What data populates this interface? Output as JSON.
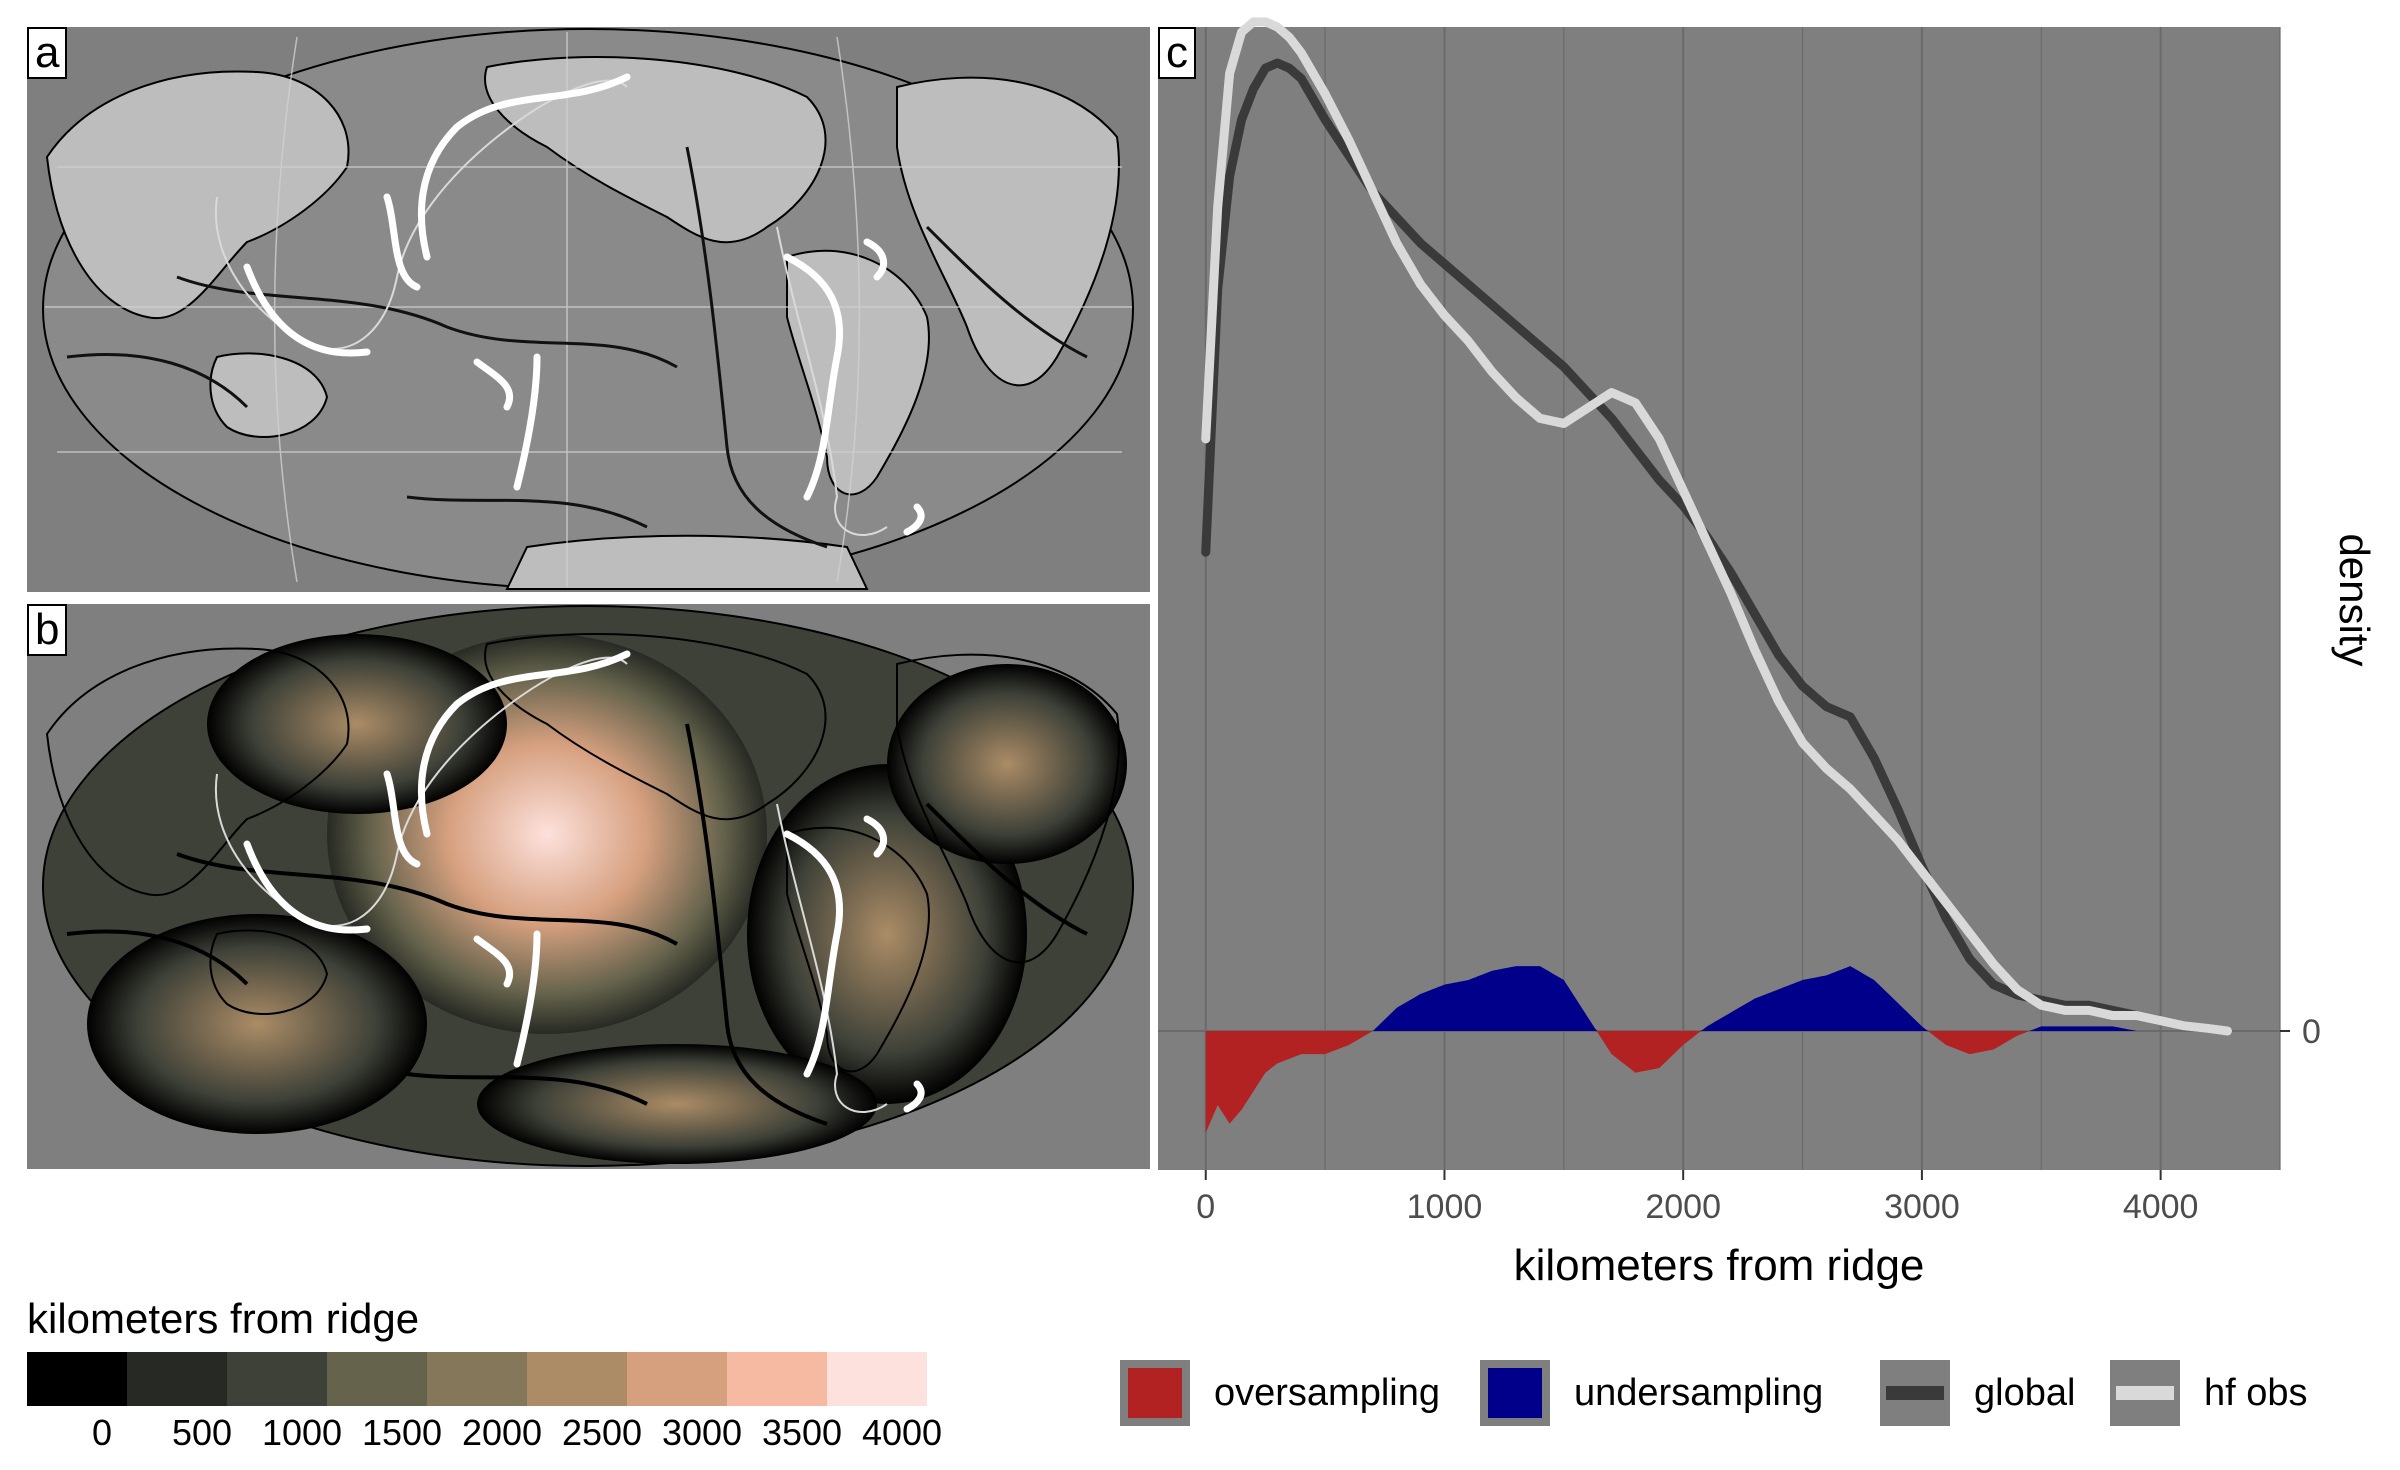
{
  "panels": {
    "a": {
      "tag": "a"
    },
    "b": {
      "tag": "b"
    },
    "c": {
      "tag": "c"
    }
  },
  "colors": {
    "panel_bg": "#7f7f7f",
    "oversampling": "#b22222",
    "undersampling": "#00008b",
    "global": "#3a3a3a",
    "hf_obs": "#d9d9d9"
  },
  "colorbar": {
    "title": "kilometers from ridge",
    "ticks": [
      "0",
      "500",
      "1000",
      "1500",
      "2000",
      "2500",
      "3000",
      "3500",
      "4000"
    ],
    "colors": [
      "#000000",
      "#272a24",
      "#3e4138",
      "#65634c",
      "#85775a",
      "#ab8c66",
      "#d6a07f",
      "#f6b9a2",
      "#fde1dc"
    ]
  },
  "legend": {
    "items": [
      {
        "label": "oversampling",
        "kind": "fill",
        "color": "#b22222"
      },
      {
        "label": "undersampling",
        "kind": "fill",
        "color": "#00008b"
      },
      {
        "label": "global",
        "kind": "line",
        "color": "#3a3a3a"
      },
      {
        "label": "hf obs",
        "kind": "line",
        "color": "#d9d9d9"
      }
    ]
  },
  "chart_data": {
    "type": "line",
    "xlabel": "kilometers from ridge",
    "ylabel": "density",
    "xlim": [
      -200,
      4500
    ],
    "ylim": [
      -0.27,
      1.95
    ],
    "xticks": [
      "0",
      "1000",
      "2000",
      "3000",
      "4000"
    ],
    "ytick_label": "0",
    "grid": "vertical",
    "series": [
      {
        "name": "global",
        "x": [
          0,
          50,
          100,
          150,
          200,
          250,
          300,
          350,
          400,
          500,
          600,
          700,
          800,
          900,
          1000,
          1100,
          1200,
          1300,
          1400,
          1500,
          1600,
          1700,
          1800,
          1900,
          2000,
          2100,
          2200,
          2300,
          2400,
          2500,
          2600,
          2700,
          2800,
          2900,
          3000,
          3100,
          3200,
          3300,
          3400,
          3500,
          3600,
          3700,
          3800,
          3900,
          4000,
          4100,
          4200,
          4280
        ],
        "y": [
          0.93,
          1.44,
          1.66,
          1.77,
          1.83,
          1.87,
          1.88,
          1.87,
          1.85,
          1.77,
          1.7,
          1.63,
          1.58,
          1.53,
          1.49,
          1.45,
          1.41,
          1.37,
          1.33,
          1.29,
          1.24,
          1.19,
          1.13,
          1.07,
          1.02,
          0.96,
          0.89,
          0.81,
          0.73,
          0.67,
          0.63,
          0.61,
          0.53,
          0.43,
          0.32,
          0.22,
          0.14,
          0.09,
          0.07,
          0.06,
          0.05,
          0.05,
          0.04,
          0.03,
          0.02,
          0.01,
          0.005,
          0.0
        ]
      },
      {
        "name": "hf obs",
        "x": [
          0,
          50,
          100,
          150,
          200,
          250,
          300,
          350,
          400,
          500,
          600,
          700,
          800,
          900,
          1000,
          1100,
          1200,
          1300,
          1400,
          1500,
          1600,
          1700,
          1800,
          1900,
          2000,
          2100,
          2200,
          2300,
          2400,
          2500,
          2600,
          2700,
          2800,
          2900,
          3000,
          3100,
          3200,
          3300,
          3400,
          3500,
          3600,
          3700,
          3800,
          3900,
          4000,
          4100,
          4200,
          4280
        ],
        "y": [
          1.15,
          1.6,
          1.86,
          1.94,
          1.96,
          1.96,
          1.95,
          1.93,
          1.9,
          1.82,
          1.73,
          1.63,
          1.53,
          1.45,
          1.39,
          1.34,
          1.28,
          1.23,
          1.19,
          1.18,
          1.21,
          1.24,
          1.22,
          1.15,
          1.05,
          0.95,
          0.85,
          0.74,
          0.64,
          0.56,
          0.51,
          0.47,
          0.42,
          0.37,
          0.31,
          0.25,
          0.19,
          0.13,
          0.08,
          0.05,
          0.04,
          0.04,
          0.03,
          0.03,
          0.02,
          0.01,
          0.005,
          0.0
        ]
      }
    ]
  }
}
